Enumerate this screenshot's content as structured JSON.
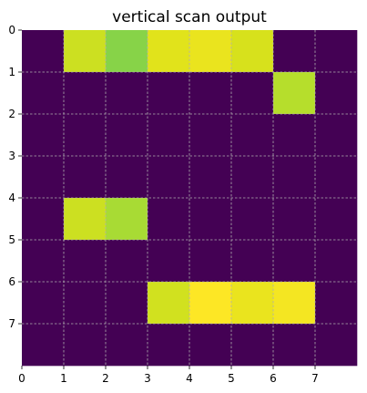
{
  "chart_data": {
    "type": "heatmap",
    "title": "vertical scan output",
    "xlabel": "",
    "ylabel": "",
    "x_ticks": [
      0,
      1,
      2,
      3,
      4,
      5,
      6,
      7
    ],
    "y_ticks": [
      0,
      1,
      2,
      3,
      4,
      5,
      6,
      7
    ],
    "x_range": [
      0,
      8
    ],
    "y_range": [
      0,
      8
    ],
    "y_direction": "down",
    "grid": true,
    "colormap": "viridis",
    "vmin": 0,
    "vmax": 1,
    "values": [
      [
        0,
        0.9,
        0.8,
        0.94,
        0.96,
        0.92,
        0,
        0
      ],
      [
        0,
        0,
        0,
        0,
        0,
        0,
        0.86,
        0
      ],
      [
        0,
        0,
        0,
        0,
        0,
        0,
        0,
        0
      ],
      [
        0,
        0,
        0,
        0,
        0,
        0,
        0,
        0
      ],
      [
        0,
        0.9,
        0.84,
        0,
        0,
        0,
        0,
        0
      ],
      [
        0,
        0,
        0,
        0,
        0,
        0,
        0,
        0
      ],
      [
        0,
        0,
        0,
        0.91,
        1.0,
        0.96,
        0.98,
        0
      ],
      [
        0,
        0,
        0,
        0,
        0,
        0,
        0,
        0
      ]
    ]
  }
}
